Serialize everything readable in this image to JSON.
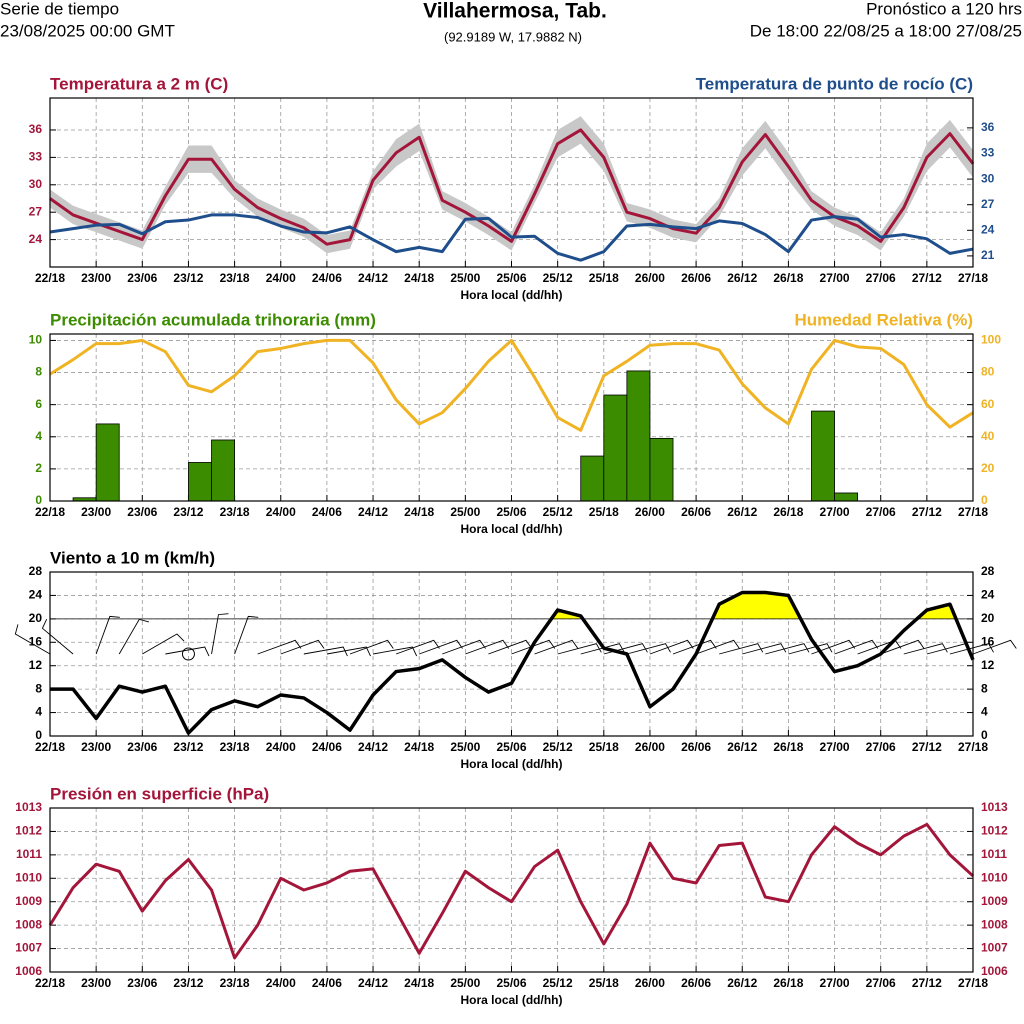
{
  "header": {
    "left_top": "Serie de tiempo",
    "left_bottom": "23/08/2025 00:00 GMT",
    "title": "Villahermosa, Tab.",
    "subtitle": "(92.9189 W, 17.9882 N)",
    "right_top": "Pronóstico a 120 hrs",
    "right_bottom": "De 18:00 22/08/25 a 18:00 27/08/25"
  },
  "time_axis": {
    "xlabel": "Hora local (dd/hh)",
    "xlim": [
      0,
      120
    ],
    "x": [
      0,
      3,
      6,
      9,
      12,
      15,
      18,
      21,
      24,
      27,
      30,
      33,
      36,
      39,
      42,
      45,
      48,
      51,
      54,
      57,
      60,
      63,
      66,
      69,
      72,
      75,
      78,
      81,
      84,
      87,
      90,
      93,
      96,
      99,
      102,
      105,
      108,
      111,
      114,
      117,
      120
    ],
    "xticks": [
      {
        "value": 0,
        "label": "22/18"
      },
      {
        "value": 6,
        "label": "23/00"
      },
      {
        "value": 12,
        "label": "23/06"
      },
      {
        "value": 18,
        "label": "23/12"
      },
      {
        "value": 24,
        "label": "23/18"
      },
      {
        "value": 30,
        "label": "24/00"
      },
      {
        "value": 36,
        "label": "24/06"
      },
      {
        "value": 42,
        "label": "24/12"
      },
      {
        "value": 48,
        "label": "24/18"
      },
      {
        "value": 54,
        "label": "25/00"
      },
      {
        "value": 60,
        "label": "25/06"
      },
      {
        "value": 66,
        "label": "25/12"
      },
      {
        "value": 72,
        "label": "25/18"
      },
      {
        "value": 78,
        "label": "26/00"
      },
      {
        "value": 84,
        "label": "26/06"
      },
      {
        "value": 90,
        "label": "26/12"
      },
      {
        "value": 96,
        "label": "26/18"
      },
      {
        "value": 102,
        "label": "27/00"
      },
      {
        "value": 108,
        "label": "27/06"
      },
      {
        "value": 114,
        "label": "27/12"
      },
      {
        "value": 120,
        "label": "27/18"
      }
    ]
  },
  "chart_data": [
    {
      "type": "line",
      "title": "Temperatura a 2 m (C)",
      "title_color": "#a3163a",
      "y2title": "Temperatura de punto de rocío (C)",
      "y2title_color": "#1f4e8c",
      "ylim": [
        21,
        39.5
      ],
      "yticks": [
        24,
        27,
        30,
        33,
        36
      ],
      "y2lim": [
        19.7,
        39.5
      ],
      "y2ticks": [
        21,
        24,
        27,
        30,
        33,
        36
      ],
      "grid": true,
      "band": {
        "color": "#c8c8c8",
        "upper": [
          29.5,
          27.7,
          26.8,
          25.9,
          25.0,
          29.8,
          34.3,
          34.3,
          30.5,
          28.5,
          27.3,
          26.3,
          24.5,
          25.0,
          31.5,
          35.0,
          36.7,
          29.3,
          28.0,
          26.5,
          24.8,
          30.0,
          36.0,
          37.5,
          34.5,
          28.0,
          27.3,
          26.2,
          25.7,
          28.5,
          34.0,
          37.0,
          33.5,
          29.3,
          27.5,
          26.5,
          24.8,
          28.5,
          34.5,
          37.1,
          33.8
        ],
        "lower": [
          27.5,
          25.7,
          24.8,
          23.9,
          23.0,
          27.8,
          31.3,
          31.3,
          28.5,
          26.5,
          25.3,
          24.3,
          22.5,
          23.0,
          29.5,
          32.0,
          33.7,
          27.3,
          26.0,
          24.5,
          22.8,
          28.0,
          33.0,
          34.5,
          31.5,
          26.0,
          25.3,
          24.2,
          23.7,
          26.5,
          31.0,
          34.0,
          30.5,
          27.3,
          25.5,
          24.5,
          22.8,
          26.5,
          31.5,
          34.1,
          30.8
        ]
      },
      "series": [
        {
          "color": "#a3163a",
          "values": [
            28.5,
            26.7,
            25.8,
            24.9,
            24.0,
            28.8,
            32.8,
            32.8,
            29.5,
            27.5,
            26.3,
            25.3,
            23.5,
            24.0,
            30.5,
            33.5,
            35.2,
            28.3,
            27.0,
            25.5,
            23.8,
            29.0,
            34.5,
            36.0,
            33.0,
            27.0,
            26.3,
            25.2,
            24.7,
            27.5,
            32.5,
            35.5,
            32.0,
            28.3,
            26.5,
            25.5,
            23.8,
            27.5,
            33.0,
            35.6,
            32.3
          ]
        },
        {
          "color": "#1f4e8c",
          "axis": "y2",
          "values": [
            23.8,
            24.2,
            24.6,
            24.7,
            23.6,
            25.0,
            25.2,
            25.8,
            25.8,
            25.5,
            24.5,
            23.8,
            23.7,
            24.4,
            22.9,
            21.5,
            22.0,
            21.5,
            25.3,
            25.4,
            23.2,
            23.3,
            21.3,
            20.5,
            21.5,
            24.5,
            24.7,
            24.4,
            24.2,
            25.1,
            24.8,
            23.5,
            21.5,
            25.2,
            25.6,
            25.3,
            23.2,
            23.5,
            23.0,
            21.3,
            21.8
          ]
        }
      ]
    },
    {
      "type": "bar_line",
      "title": "Precipitación acumulada trihoraria (mm)",
      "title_color": "#3c8c00",
      "y2title": "Humedad Relativa (%)",
      "y2title_color": "#f0b323",
      "ylim": [
        0,
        10.4
      ],
      "yticks": [
        0,
        2,
        4,
        6,
        8,
        10
      ],
      "y2lim": [
        0,
        104
      ],
      "y2ticks": [
        0,
        20,
        40,
        60,
        80,
        100
      ],
      "grid": true,
      "series": [
        {
          "color": "#3c8c00",
          "kind": "bar",
          "values": [
            0,
            0.2,
            4.8,
            0,
            0,
            0,
            2.4,
            3.8,
            0,
            0,
            0,
            0,
            0,
            0,
            0,
            0,
            0,
            0,
            0,
            0,
            0,
            0,
            0,
            2.8,
            6.6,
            8.1,
            3.9,
            0,
            0,
            0,
            0,
            0,
            0,
            5.6,
            0.5,
            0,
            0,
            0,
            0,
            0
          ]
        },
        {
          "color": "#f0b323",
          "axis": "y2",
          "values": [
            79,
            88,
            98,
            98,
            100,
            93,
            72,
            68,
            78,
            93,
            95,
            98,
            100,
            100,
            86,
            63,
            48,
            55,
            70,
            87,
            100,
            77,
            52,
            44,
            78,
            87,
            97,
            98,
            98,
            94,
            73,
            58,
            48,
            82,
            100,
            96,
            95,
            85,
            60,
            46,
            55
          ]
        }
      ]
    },
    {
      "type": "wind",
      "title": "Viento a 10 m (km/h)",
      "title_color": "#000000",
      "y2title_color": "#000000",
      "ylim": [
        0,
        28
      ],
      "yticks": [
        0,
        4,
        8,
        12,
        16,
        20,
        24,
        28
      ],
      "mirror_yticks": true,
      "grid": true,
      "reference_line": 20,
      "series": [
        {
          "color": "#000000",
          "fill_above": 20,
          "fill_color": "#ffff00",
          "values": [
            8,
            8,
            3,
            8.5,
            7.5,
            8.5,
            0.5,
            4.5,
            6,
            5,
            7,
            6.5,
            4,
            1,
            7,
            11,
            11.5,
            13,
            10,
            7.5,
            9,
            16,
            21.5,
            20.5,
            15,
            14,
            5,
            8,
            14,
            22.5,
            24.5,
            24.5,
            24,
            16.5,
            11,
            12,
            14,
            18,
            21.5,
            22.5,
            13
          ],
          "directions": [
            300,
            310,
            20,
            30,
            60,
            80,
            0,
            10,
            20,
            70,
            70,
            80,
            80,
            70,
            80,
            70,
            70,
            70,
            70,
            70,
            70,
            70,
            75,
            75,
            75,
            75,
            70,
            70,
            70,
            75,
            75,
            75,
            75,
            70,
            70,
            70,
            70,
            75,
            75,
            75,
            70
          ]
        }
      ]
    },
    {
      "type": "line",
      "title": "Presión en superficie (hPa)",
      "title_color": "#a3163a",
      "y2title_color": "#a3163a",
      "ylim": [
        1006,
        1013
      ],
      "yticks": [
        1006,
        1007,
        1008,
        1009,
        1010,
        1011,
        1012,
        1013
      ],
      "mirror_yticks": true,
      "grid": true,
      "series": [
        {
          "color": "#a3163a",
          "values": [
            1008.0,
            1009.6,
            1010.6,
            1010.3,
            1008.6,
            1009.9,
            1010.8,
            1009.5,
            1006.6,
            1008.0,
            1010.0,
            1009.5,
            1009.8,
            1010.3,
            1010.4,
            1008.6,
            1006.8,
            1008.5,
            1010.3,
            1009.6,
            1009.0,
            1010.5,
            1011.2,
            1009.0,
            1007.2,
            1008.9,
            1011.5,
            1010.0,
            1009.8,
            1011.4,
            1011.5,
            1009.2,
            1009.0,
            1011.0,
            1012.2,
            1011.5,
            1011.0,
            1011.8,
            1012.3,
            1011.0,
            1010.1
          ]
        }
      ]
    }
  ]
}
